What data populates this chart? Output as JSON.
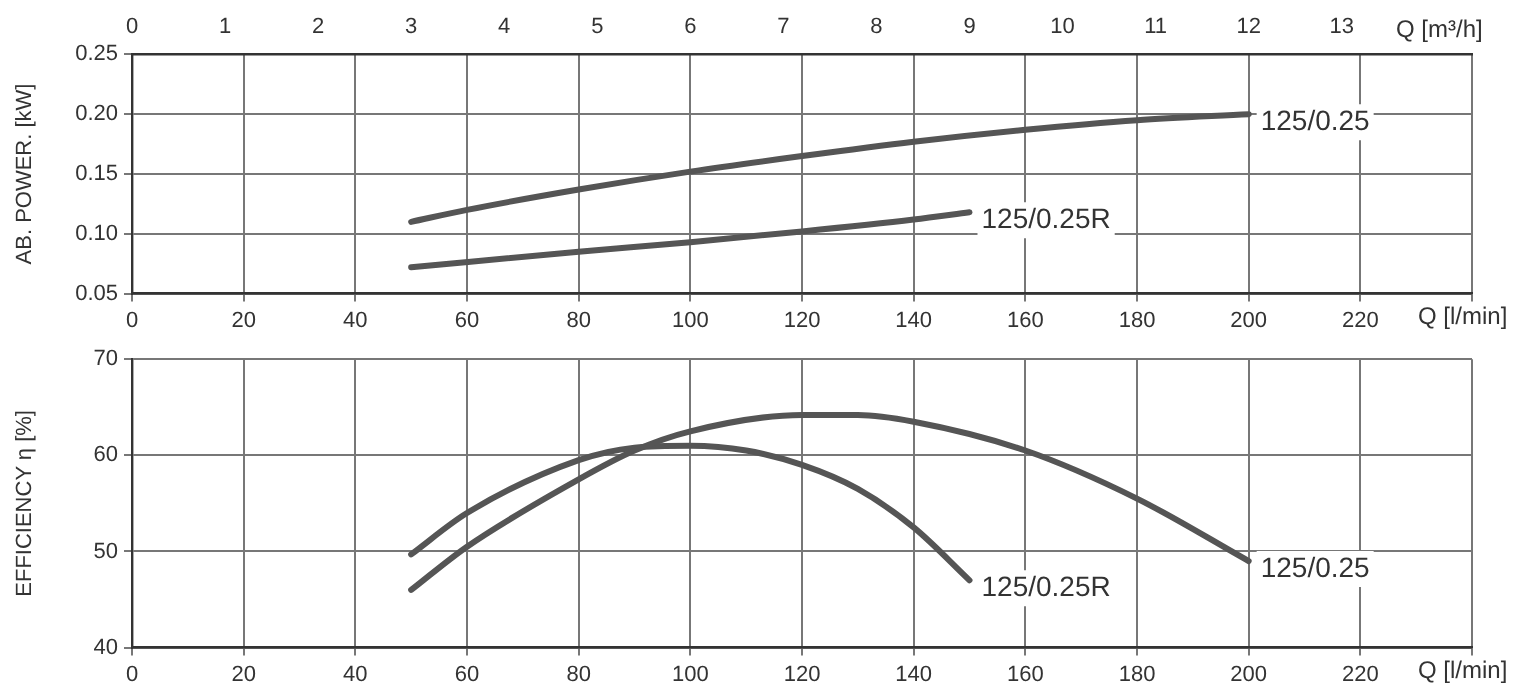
{
  "chart_data": [
    {
      "type": "line",
      "ylabel": "AB. POWER. [kW]",
      "xlabel": "Q [l/min]",
      "x2label": "Q [m³/h]",
      "xlim": [
        0,
        240
      ],
      "xticks": [
        0,
        20,
        40,
        60,
        80,
        100,
        120,
        140,
        160,
        180,
        200,
        220,
        {
          "value": 240,
          "label": null
        }
      ],
      "x2lim": [
        0,
        14.4
      ],
      "x2ticks": [
        0,
        1,
        2,
        3,
        4,
        5,
        6,
        7,
        8,
        9,
        10,
        11,
        12,
        13
      ],
      "ylim": [
        0.05,
        0.25
      ],
      "yticks": [
        {
          "value": 0.05,
          "label": "0.05"
        },
        {
          "value": 0.1,
          "label": "0.10"
        },
        {
          "value": 0.15,
          "label": "0.15"
        },
        {
          "value": 0.2,
          "label": "0.20"
        },
        {
          "value": 0.25,
          "label": "0.25"
        }
      ],
      "grid": true,
      "legend": false,
      "marker": "none",
      "line_style": "solid",
      "series": [
        {
          "name": "125/0.25",
          "color": "#555555",
          "x": [
            50,
            60,
            80,
            100,
            120,
            140,
            160,
            180,
            200
          ],
          "values": [
            0.11,
            0.12,
            0.137,
            0.152,
            0.165,
            0.177,
            0.187,
            0.195,
            0.2
          ]
        },
        {
          "name": "125/0.25R",
          "color": "#555555",
          "x": [
            50,
            80,
            100,
            120,
            140,
            150
          ],
          "values": [
            0.072,
            0.085,
            0.093,
            0.102,
            0.112,
            0.118
          ]
        }
      ]
    },
    {
      "type": "line",
      "ylabel": "EFFICIENCY η [%]",
      "xlabel": "Q [l/min]",
      "xlim": [
        0,
        240
      ],
      "xticks": [
        0,
        20,
        40,
        60,
        80,
        100,
        120,
        140,
        160,
        180,
        200,
        220,
        {
          "value": 240,
          "label": null
        }
      ],
      "ylim": [
        40,
        70
      ],
      "yticks": [
        40,
        50,
        60,
        70
      ],
      "grid": true,
      "legend": false,
      "marker": "none",
      "line_style": "solid",
      "series": [
        {
          "name": "125/0.25",
          "color": "#555555",
          "x": [
            50,
            60,
            80,
            90,
            100,
            120,
            130,
            140,
            160,
            180,
            200
          ],
          "values": [
            46,
            50.5,
            57.5,
            60.5,
            62.5,
            64.2,
            64.2,
            63.5,
            60.5,
            55.5,
            49
          ]
        },
        {
          "name": "125/0.25R",
          "color": "#555555",
          "x": [
            50,
            60,
            80,
            90,
            100,
            110,
            120,
            130,
            140,
            150
          ],
          "values": [
            49.7,
            54,
            59.5,
            60.8,
            61,
            60.5,
            59,
            56.5,
            52.5,
            47
          ]
        }
      ]
    }
  ]
}
